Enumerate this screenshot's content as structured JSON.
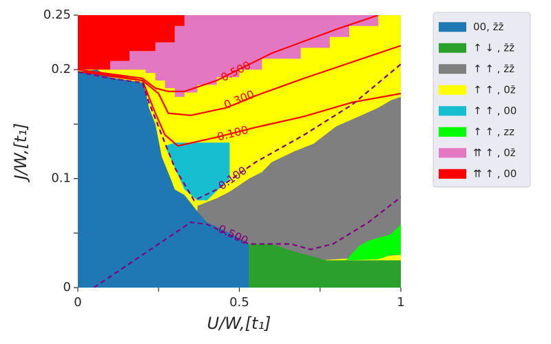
{
  "chart_data": {
    "type": "heatmap",
    "title": "",
    "xlabel": "U/W,[t₁]",
    "ylabel": "J/W,[t₁]",
    "xlim": [
      0,
      1
    ],
    "ylim": [
      0,
      0.25
    ],
    "x_ticks": [
      {
        "value": 0,
        "label": "0"
      },
      {
        "value": 0.25,
        "label": ""
      },
      {
        "value": 0.5,
        "label": "0.5"
      },
      {
        "value": 0.75,
        "label": ""
      },
      {
        "value": 1,
        "label": "1"
      }
    ],
    "y_ticks": [
      {
        "value": 0,
        "label": "0"
      },
      {
        "value": 0.05,
        "label": ""
      },
      {
        "value": 0.1,
        "label": "0.1"
      },
      {
        "value": 0.15,
        "label": ""
      },
      {
        "value": 0.2,
        "label": "0.2"
      },
      {
        "value": 0.25,
        "label": "0.25"
      }
    ],
    "legend": {
      "placement": "outside-right",
      "entries": [
        {
          "label": "00, z̄z̄",
          "color": "#1f77b4"
        },
        {
          "label": "↑ ↓ , z̄z̄",
          "color": "#2ca02c"
        },
        {
          "label": "↑ ↑ , z̄z̄",
          "color": "#7f7f7f"
        },
        {
          "label": "↑ ↑ , 0z̄",
          "color": "#ffff00"
        },
        {
          "label": "↑ ↑ , 00",
          "color": "#17becf"
        },
        {
          "label": "↑ ↑ , zz",
          "color": "#00ff00"
        },
        {
          "label": "⇈ ↑ , 0z̄",
          "color": "#e377c2"
        },
        {
          "label": "⇈ ↑ , 00",
          "color": "#ff0000"
        }
      ]
    },
    "regions": [
      {
        "phase": "↑ ↑ , 0z̄",
        "color": "#ffff00",
        "polygon": [
          [
            0,
            0.25
          ],
          [
            1,
            0.25
          ],
          [
            1,
            0
          ],
          [
            0,
            0
          ]
        ]
      },
      {
        "phase": "⇈ ↑ , 0z̄",
        "color": "#e377c2",
        "polygon": [
          [
            0.33,
            0.25
          ],
          [
            0.93,
            0.25
          ],
          [
            0.93,
            0.24
          ],
          [
            0.84,
            0.24
          ],
          [
            0.84,
            0.23
          ],
          [
            0.78,
            0.23
          ],
          [
            0.78,
            0.22
          ],
          [
            0.69,
            0.22
          ],
          [
            0.69,
            0.21
          ],
          [
            0.57,
            0.21
          ],
          [
            0.57,
            0.2
          ],
          [
            0.5,
            0.2
          ],
          [
            0.5,
            0.193
          ],
          [
            0.43,
            0.193
          ],
          [
            0.43,
            0.186
          ],
          [
            0.37,
            0.186
          ],
          [
            0.37,
            0.179
          ],
          [
            0.33,
            0.179
          ],
          [
            0.33,
            0.175
          ],
          [
            0.3,
            0.175
          ],
          [
            0.3,
            0.183
          ],
          [
            0.27,
            0.183
          ],
          [
            0.27,
            0.19
          ],
          [
            0.24,
            0.19
          ],
          [
            0.24,
            0.197
          ],
          [
            0.21,
            0.197
          ],
          [
            0.21,
            0.2
          ],
          [
            0.1,
            0.2
          ],
          [
            0.1,
            0.208
          ],
          [
            0.16,
            0.208
          ],
          [
            0.16,
            0.217
          ],
          [
            0.24,
            0.217
          ],
          [
            0.24,
            0.225
          ],
          [
            0.3,
            0.225
          ],
          [
            0.3,
            0.24
          ],
          [
            0.33,
            0.24
          ]
        ]
      },
      {
        "phase": "⇈ ↑ , 00",
        "color": "#ff0000",
        "polygon": [
          [
            0,
            0.25
          ],
          [
            0.33,
            0.25
          ],
          [
            0.33,
            0.24
          ],
          [
            0.3,
            0.24
          ],
          [
            0.3,
            0.225
          ],
          [
            0.24,
            0.225
          ],
          [
            0.24,
            0.217
          ],
          [
            0.16,
            0.217
          ],
          [
            0.16,
            0.208
          ],
          [
            0.1,
            0.208
          ],
          [
            0.1,
            0.2
          ],
          [
            0,
            0.2
          ]
        ]
      },
      {
        "phase": "↑ ↑ , z̄z̄",
        "color": "#7f7f7f",
        "polygon": [
          [
            0.37,
            0.075
          ],
          [
            0.43,
            0.082
          ],
          [
            0.47,
            0.088
          ],
          [
            0.53,
            0.1
          ],
          [
            0.57,
            0.106
          ],
          [
            0.6,
            0.115
          ],
          [
            0.67,
            0.125
          ],
          [
            0.73,
            0.132
          ],
          [
            0.8,
            0.148
          ],
          [
            0.87,
            0.157
          ],
          [
            0.93,
            0.165
          ],
          [
            0.97,
            0.172
          ],
          [
            1,
            0.175
          ],
          [
            1,
            0.03
          ],
          [
            0.75,
            0.025
          ],
          [
            0.53,
            0.04
          ],
          [
            0.4,
            0.06
          ],
          [
            0.37,
            0.07
          ]
        ]
      },
      {
        "phase": "↑ ↓ , z̄z̄",
        "color": "#2ca02c",
        "polygon": [
          [
            0.53,
            0.04
          ],
          [
            0.6,
            0.04
          ],
          [
            0.67,
            0.033
          ],
          [
            0.77,
            0.025
          ],
          [
            0.93,
            0.025
          ],
          [
            1,
            0.025
          ],
          [
            1,
            0
          ],
          [
            0.53,
            0
          ]
        ]
      },
      {
        "phase": "↑ ↑ , zz",
        "color": "#00ff00",
        "polygon": [
          [
            0.83,
            0.025
          ],
          [
            0.87,
            0.038
          ],
          [
            0.9,
            0.043
          ],
          [
            0.97,
            0.049
          ],
          [
            1,
            0.058
          ],
          [
            1,
            0.03
          ],
          [
            0.97,
            0.03
          ],
          [
            0.93,
            0.026
          ]
        ]
      },
      {
        "phase": "↑ ↑ , 00",
        "color": "#17becf",
        "polygon": [
          [
            0.3,
            0.133
          ],
          [
            0.47,
            0.133
          ],
          [
            0.47,
            0.1
          ],
          [
            0.4,
            0.08
          ],
          [
            0.37,
            0.08
          ],
          [
            0.33,
            0.09
          ],
          [
            0.3,
            0.11
          ],
          [
            0.27,
            0.13
          ]
        ]
      },
      {
        "phase": "00, z̄z̄",
        "color": "#1f77b4",
        "polygon": [
          [
            0,
            0.198
          ],
          [
            0.06,
            0.2
          ],
          [
            0.1,
            0.193
          ],
          [
            0.2,
            0.188
          ],
          [
            0.21,
            0.18
          ],
          [
            0.22,
            0.165
          ],
          [
            0.24,
            0.15
          ],
          [
            0.26,
            0.12
          ],
          [
            0.29,
            0.098
          ],
          [
            0.3,
            0.09
          ],
          [
            0.33,
            0.085
          ],
          [
            0.37,
            0.07
          ],
          [
            0.4,
            0.06
          ],
          [
            0.47,
            0.05
          ],
          [
            0.53,
            0.04
          ],
          [
            0.53,
            0
          ],
          [
            0,
            0
          ]
        ]
      }
    ],
    "contours": [
      {
        "label": "0.500",
        "color": "#ff0000",
        "style": "solid",
        "label_at": [
          0.49,
          0.198
        ],
        "points": [
          [
            0,
            0.2
          ],
          [
            0.1,
            0.196
          ],
          [
            0.2,
            0.192
          ],
          [
            0.24,
            0.183
          ],
          [
            0.28,
            0.18
          ],
          [
            0.33,
            0.18
          ],
          [
            0.43,
            0.19
          ],
          [
            0.6,
            0.215
          ],
          [
            0.8,
            0.237
          ],
          [
            0.93,
            0.25
          ]
        ]
      },
      {
        "label": "0.300",
        "color": "#ff0000",
        "style": "solid",
        "label_at": [
          0.5,
          0.172
        ],
        "points": [
          [
            0,
            0.198
          ],
          [
            0.1,
            0.195
          ],
          [
            0.2,
            0.19
          ],
          [
            0.25,
            0.178
          ],
          [
            0.28,
            0.16
          ],
          [
            0.35,
            0.158
          ],
          [
            0.46,
            0.165
          ],
          [
            0.55,
            0.176
          ],
          [
            0.7,
            0.192
          ],
          [
            0.85,
            0.207
          ],
          [
            1,
            0.222
          ]
        ]
      },
      {
        "label": "0.100",
        "color": "#ff0000",
        "style": "solid",
        "label_at": [
          0.48,
          0.141
        ],
        "points": [
          [
            0.02,
            0.198
          ],
          [
            0.1,
            0.194
          ],
          [
            0.2,
            0.19
          ],
          [
            0.24,
            0.16
          ],
          [
            0.27,
            0.14
          ],
          [
            0.31,
            0.13
          ],
          [
            0.43,
            0.138
          ],
          [
            0.55,
            0.147
          ],
          [
            0.7,
            0.157
          ],
          [
            0.85,
            0.17
          ],
          [
            1,
            0.178
          ]
        ]
      },
      {
        "label": "0.100",
        "color": "#800080",
        "style": "dashed",
        "label_at": [
          0.48,
          0.1
        ],
        "points": [
          [
            0,
            0.198
          ],
          [
            0.1,
            0.192
          ],
          [
            0.2,
            0.188
          ],
          [
            0.22,
            0.17
          ],
          [
            0.26,
            0.14
          ],
          [
            0.3,
            0.11
          ],
          [
            0.36,
            0.08
          ],
          [
            0.43,
            0.09
          ],
          [
            0.55,
            0.115
          ],
          [
            0.7,
            0.14
          ],
          [
            0.85,
            0.168
          ],
          [
            1,
            0.205
          ]
        ]
      },
      {
        "label": "0.500",
        "color": "#800080",
        "style": "dashed",
        "label_at": [
          0.48,
          0.048
        ],
        "points": [
          [
            0.05,
            0
          ],
          [
            0.2,
            0.03
          ],
          [
            0.35,
            0.06
          ],
          [
            0.4,
            0.058
          ],
          [
            0.53,
            0.04
          ],
          [
            0.66,
            0.04
          ],
          [
            0.72,
            0.035
          ],
          [
            0.79,
            0.04
          ],
          [
            0.9,
            0.06
          ],
          [
            1,
            0.083
          ]
        ]
      }
    ]
  }
}
